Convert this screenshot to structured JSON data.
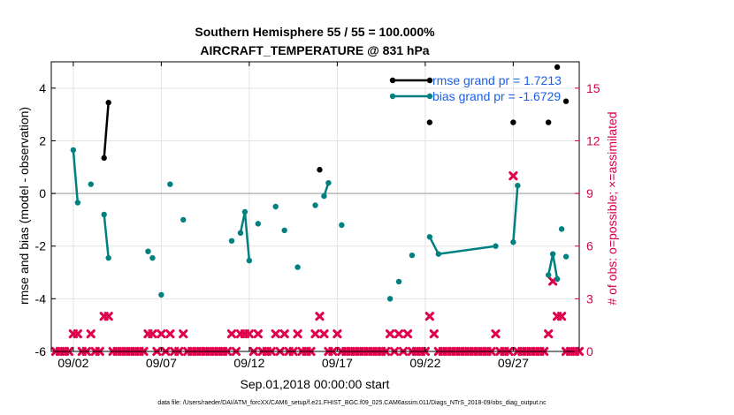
{
  "chart_data": {
    "type": "line",
    "title": "Southern Hemisphere 55 / 55 = 100.000%",
    "subtitle": "AIRCRAFT_TEMPERATURE @ 831 hPa",
    "xlabel": "Sep.01,2018 00:00:00 start",
    "ylabel": "rmse and bias (model - observation)",
    "ylabel_right": "# of obs: o=possible; ×=assimilated",
    "footnote": "data file: /Users/raeder/DAI/ATM_forcXX/CAM6_setup/f.e21.FHIST_BGC.f09_025.CAM6assim.011/Diags_NTrS_2018-09/obs_diag_output.nc",
    "x_tick_labels": [
      "09/02",
      "09/07",
      "09/12",
      "09/17",
      "09/22",
      "09/27"
    ],
    "x_tick_values": [
      2,
      7,
      12,
      17,
      22,
      27
    ],
    "xlim": [
      0.75,
      30.75
    ],
    "y_tick_labels": [
      "-6",
      "-4",
      "-2",
      "0",
      "2",
      "4"
    ],
    "y_tick_values": [
      -6,
      -4,
      -2,
      0,
      2,
      4
    ],
    "ylim": [
      -6,
      5
    ],
    "y2_tick_labels": [
      "0",
      "3",
      "6",
      "9",
      "12",
      "15"
    ],
    "y2_tick_values": [
      0,
      3,
      6,
      9,
      12,
      15
    ],
    "y2lim": [
      0,
      16.5
    ],
    "grid": true,
    "legend_position": "top-right",
    "series": [
      {
        "name": "rmse grand pr = 1.7213",
        "color": "#000000",
        "axis": "left",
        "points": [
          [
            3.75,
            1.35
          ],
          [
            4.0,
            3.45
          ],
          [
            16.0,
            0.9
          ],
          [
            22.25,
            2.7
          ],
          [
            27.0,
            2.7
          ],
          [
            29.0,
            2.7
          ],
          [
            29.5,
            4.8
          ],
          [
            30.0,
            3.5
          ]
        ],
        "segments": [
          [
            0,
            1
          ]
        ]
      },
      {
        "name": "bias grand pr = -1.6729",
        "color": "#008080",
        "axis": "left",
        "points": [
          [
            2.0,
            1.65
          ],
          [
            2.25,
            -0.35
          ],
          [
            3.0,
            0.35
          ],
          [
            3.75,
            -0.8
          ],
          [
            4.0,
            -2.45
          ],
          [
            6.25,
            -2.2
          ],
          [
            6.5,
            -2.45
          ],
          [
            7.0,
            -3.85
          ],
          [
            7.5,
            0.35
          ],
          [
            8.25,
            -1.0
          ],
          [
            11.0,
            -1.8
          ],
          [
            11.5,
            -1.5
          ],
          [
            11.75,
            -0.7
          ],
          [
            12.0,
            -2.55
          ],
          [
            12.5,
            -1.15
          ],
          [
            13.5,
            -0.5
          ],
          [
            14.0,
            -1.4
          ],
          [
            14.75,
            -2.8
          ],
          [
            15.75,
            -0.45
          ],
          [
            16.25,
            -0.1
          ],
          [
            16.5,
            0.4
          ],
          [
            17.25,
            -1.2
          ],
          [
            20.0,
            -4.0
          ],
          [
            20.5,
            -3.35
          ],
          [
            21.25,
            -2.35
          ],
          [
            22.25,
            -1.65
          ],
          [
            22.75,
            -2.3
          ],
          [
            26.0,
            -2.0
          ],
          [
            27.0,
            -1.85
          ],
          [
            27.25,
            0.3
          ],
          [
            29.0,
            -3.1
          ],
          [
            29.25,
            -2.3
          ],
          [
            29.5,
            -3.25
          ],
          [
            29.75,
            -1.35
          ],
          [
            30.0,
            -2.4
          ]
        ],
        "segments": [
          [
            0,
            1
          ],
          [
            3,
            4
          ],
          [
            11,
            12
          ],
          [
            12,
            13
          ],
          [
            19,
            20
          ],
          [
            25,
            26
          ],
          [
            26,
            27
          ],
          [
            28,
            29
          ],
          [
            30,
            31
          ],
          [
            31,
            32
          ]
        ]
      }
    ],
    "obs_counts": {
      "color": "#e0004e",
      "axis": "right",
      "x": [
        1.0,
        1.25,
        1.5,
        1.75,
        2.0,
        2.25,
        2.5,
        2.75,
        3.0,
        3.25,
        3.5,
        3.75,
        4.0,
        4.25,
        4.5,
        4.75,
        5.0,
        5.25,
        5.5,
        5.75,
        6.0,
        6.25,
        6.5,
        6.75,
        7.0,
        7.25,
        7.5,
        7.75,
        8.0,
        8.25,
        8.5,
        8.75,
        9.0,
        9.25,
        9.5,
        9.75,
        10.0,
        10.25,
        10.5,
        10.75,
        11.0,
        11.25,
        11.5,
        11.75,
        12.0,
        12.25,
        12.5,
        12.75,
        13.0,
        13.25,
        13.5,
        13.75,
        14.0,
        14.25,
        14.5,
        14.75,
        15.0,
        15.25,
        15.5,
        15.75,
        16.0,
        16.25,
        16.5,
        16.75,
        17.0,
        17.25,
        17.5,
        17.75,
        18.0,
        18.25,
        18.5,
        18.75,
        19.0,
        19.25,
        19.5,
        19.75,
        20.0,
        20.25,
        20.5,
        20.75,
        21.0,
        21.25,
        21.5,
        21.75,
        22.0,
        22.25,
        22.5,
        22.75,
        23.0,
        23.25,
        23.5,
        23.75,
        24.0,
        24.25,
        24.5,
        24.75,
        25.0,
        25.25,
        25.5,
        25.75,
        26.0,
        26.25,
        26.5,
        26.75,
        27.0,
        27.25,
        27.5,
        27.75,
        28.0,
        28.25,
        28.5,
        28.75,
        29.0,
        29.25,
        29.5,
        29.75,
        30.0,
        30.25,
        30.5,
        30.75
      ],
      "values": [
        0,
        0,
        0,
        0,
        1,
        1,
        0,
        0,
        1,
        0,
        0,
        2,
        2,
        0,
        0,
        0,
        0,
        0,
        0,
        0,
        0,
        1,
        1,
        0,
        1,
        0,
        1,
        0,
        0,
        1,
        0,
        0,
        0,
        0,
        0,
        0,
        0,
        0,
        0,
        0,
        1,
        0,
        1,
        1,
        1,
        0,
        1,
        0,
        0,
        0,
        1,
        0,
        1,
        0,
        0,
        1,
        0,
        0,
        0,
        1,
        2,
        1,
        0,
        0,
        1,
        0,
        0,
        0,
        0,
        0,
        0,
        0,
        0,
        0,
        0,
        0,
        1,
        0,
        1,
        0,
        1,
        0,
        0,
        0,
        0,
        2,
        1,
        0,
        0,
        0,
        0,
        0,
        0,
        0,
        0,
        0,
        0,
        0,
        0,
        0,
        1,
        0,
        0,
        0,
        10,
        0,
        0,
        0,
        0,
        0,
        0,
        0,
        1,
        4,
        2,
        2,
        0,
        0,
        0,
        0
      ]
    }
  }
}
